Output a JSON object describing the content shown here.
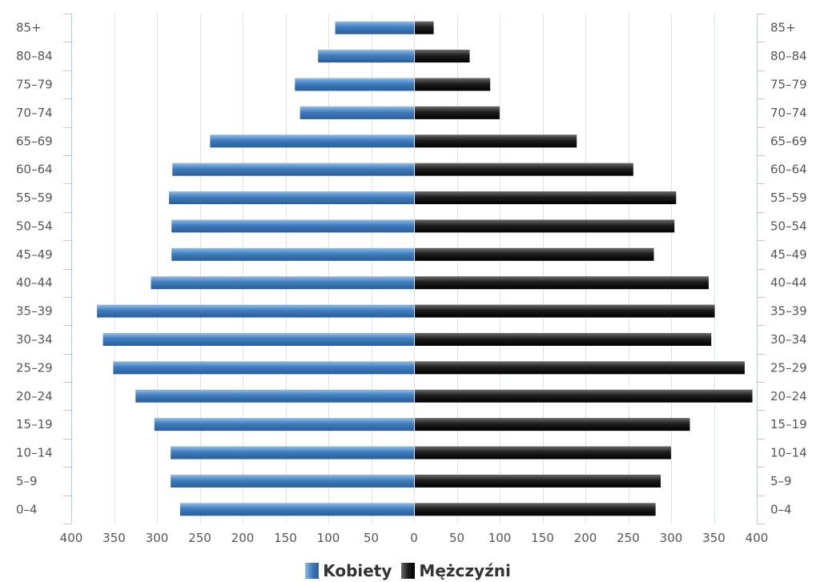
{
  "chart_data": {
    "type": "bar",
    "orientation": "horizontal",
    "title": "",
    "xlabel": "",
    "ylabel": "",
    "xlim": [
      -400,
      400
    ],
    "x_ticks": [
      "400",
      "350",
      "300",
      "250",
      "200",
      "150",
      "100",
      "50",
      "0",
      "50",
      "100",
      "150",
      "200",
      "250",
      "300",
      "350",
      "400"
    ],
    "categories": [
      "0–4",
      "5–9",
      "10–14",
      "15–19",
      "20–24",
      "25–29",
      "30–34",
      "35–39",
      "40–44",
      "45–49",
      "50–54",
      "55–59",
      "60–64",
      "65–69",
      "70–74",
      "75–79",
      "80–84",
      "85+"
    ],
    "series": [
      {
        "name": "Kobiety",
        "color": "#3f7dbf",
        "values": [
          273,
          284,
          284,
          303,
          325,
          351,
          363,
          370,
          307,
          283,
          283,
          286,
          282,
          238,
          133,
          139,
          112,
          92
        ]
      },
      {
        "name": "Mężczyźni",
        "color": "#1a1a1a",
        "values": [
          281,
          287,
          299,
          321,
          394,
          385,
          346,
          350,
          343,
          279,
          303,
          305,
          255,
          189,
          99,
          88,
          64,
          22
        ]
      }
    ],
    "grid": true,
    "legend_position": "bottom-center"
  }
}
